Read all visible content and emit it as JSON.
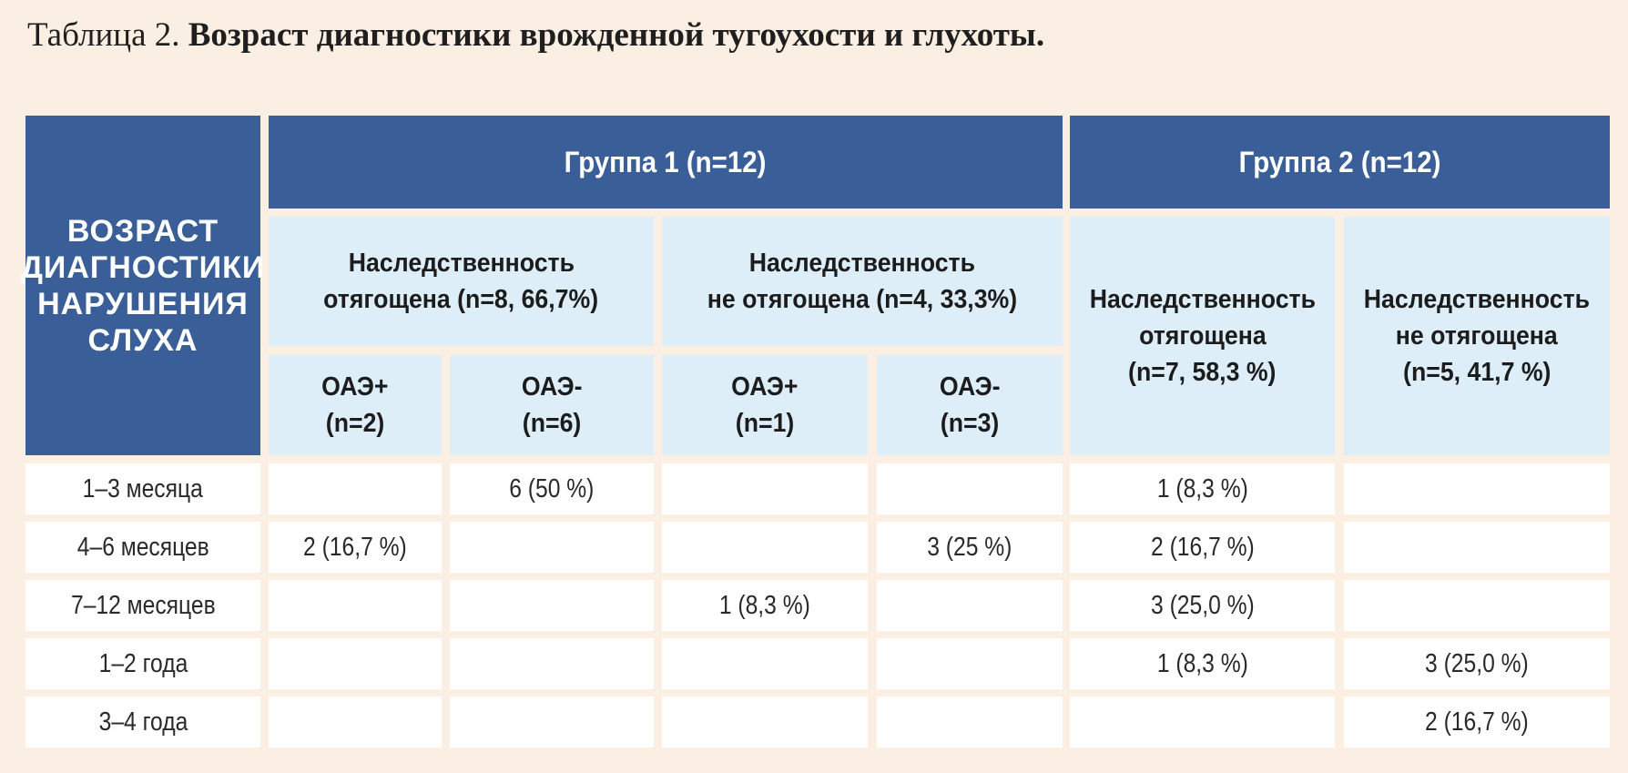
{
  "title": {
    "prefix": "Таблица 2.",
    "bold": "Возраст диагностики врожденной тугоухости и глухоты."
  },
  "header": {
    "row_header": [
      "ВОЗРАСТ",
      "ДИАГНОСТИКИ",
      "НАРУШЕНИЯ",
      "СЛУХА"
    ],
    "group1": "Группа 1 (n=12)",
    "group2": "Группа 2 (n=12)",
    "g1_her_pos": [
      "Наследственность",
      "отягощена (n=8, 66,7%)"
    ],
    "g1_her_neg": [
      "Наследственность",
      "не отягощена (n=4, 33,3%)"
    ],
    "g2_her_pos": [
      "Наследственность",
      "отягощена",
      "(n=7, 58,3 %)"
    ],
    "g2_her_neg": [
      "Наследственность",
      "не отягощена",
      "(n=5, 41,7 %)"
    ],
    "oae_pos_2": [
      "ОАЭ+",
      "(n=2)"
    ],
    "oae_neg_6": [
      "ОАЭ-",
      "(n=6)"
    ],
    "oae_pos_1": [
      "ОАЭ+",
      "(n=1)"
    ],
    "oae_neg_3": [
      "ОАЭ-",
      "(n=3)"
    ]
  },
  "rows": [
    {
      "label": "1–3 месяца",
      "cells": [
        "",
        "6 (50 %)",
        "",
        "",
        "1 (8,3 %)",
        ""
      ]
    },
    {
      "label": "4–6 месяцев",
      "cells": [
        "2 (16,7 %)",
        "",
        "",
        "3 (25 %)",
        "2 (16,7 %)",
        ""
      ]
    },
    {
      "label": "7–12 месяцев",
      "cells": [
        "",
        "",
        "1 (8,3 %)",
        "",
        "3 (25,0 %)",
        ""
      ]
    },
    {
      "label": "1–2 года",
      "cells": [
        "",
        "",
        "",
        "",
        "1 (8,3 %)",
        "3 (25,0 %)"
      ]
    },
    {
      "label": "3–4 года",
      "cells": [
        "",
        "",
        "",
        "",
        "",
        "2 (16,7 %)"
      ]
    }
  ]
}
